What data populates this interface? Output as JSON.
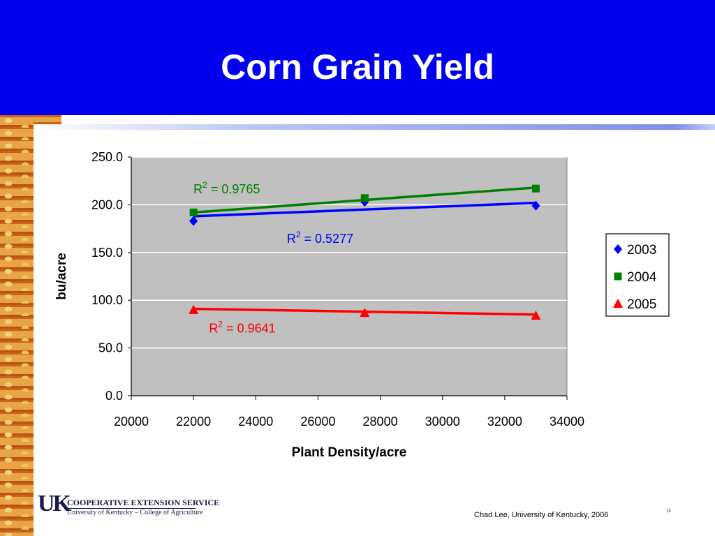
{
  "slide": {
    "title": "Corn Grain Yield",
    "credit": "Chad Lee, University of Kentucky, 2006",
    "slide_number": "19"
  },
  "logo": {
    "mark": "UK",
    "line1": "COOPERATIVE EXTENSION SERVICE",
    "line2": "University of Kentucky – College of Agriculture"
  },
  "chart_data": {
    "type": "scatter",
    "title": "",
    "xlabel": "Plant Density/acre",
    "ylabel": "bu/acre",
    "xlim": [
      20000,
      34000
    ],
    "ylim": [
      0,
      250
    ],
    "x_ticks": [
      20000,
      22000,
      24000,
      26000,
      28000,
      30000,
      32000,
      34000
    ],
    "y_ticks": [
      "0.0",
      "50.0",
      "100.0",
      "150.0",
      "200.0",
      "250.0"
    ],
    "y_tick_values": [
      0,
      50,
      100,
      150,
      200,
      250
    ],
    "grid": "horizontal",
    "plot_background": "#c0c0c0",
    "legend": "right",
    "series": [
      {
        "name": "2003",
        "color": "#0000ff",
        "marker": "diamond",
        "x": [
          22000,
          27500,
          33000
        ],
        "values": [
          183,
          203,
          199
        ],
        "trendline": [
          188,
          202
        ],
        "r2_label": "0.5277",
        "r2_at": [
          25000,
          160
        ]
      },
      {
        "name": "2004",
        "color": "#008000",
        "marker": "square",
        "x": [
          22000,
          27500,
          33000
        ],
        "values": [
          192,
          207,
          217
        ],
        "trendline": [
          192,
          218
        ],
        "r2_label": "0.9765",
        "r2_at": [
          22000,
          212
        ]
      },
      {
        "name": "2005",
        "color": "#ff0000",
        "marker": "triangle",
        "x": [
          22000,
          27500,
          33000
        ],
        "values": [
          90,
          87,
          84
        ],
        "trendline": [
          91,
          85
        ],
        "r2_label": "0.9641",
        "r2_at": [
          22500,
          66
        ]
      }
    ]
  }
}
